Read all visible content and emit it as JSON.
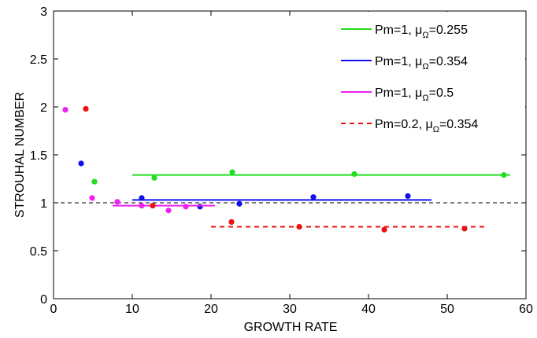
{
  "chart_data": {
    "type": "scatter",
    "xlabel": "GROWTH RATE",
    "ylabel": "STROUHAL NUMBER",
    "xlim": [
      0,
      60
    ],
    "ylim": [
      0,
      3
    ],
    "xticks": [
      "0",
      "10",
      "20",
      "30",
      "40",
      "50",
      "60"
    ],
    "yticks": [
      "0",
      "0.5",
      "1",
      "1.5",
      "2",
      "2.5",
      "3"
    ],
    "grid": false,
    "legend_position": "top-right",
    "reference_line": {
      "y": 1,
      "style": "dashed",
      "color": "#000000"
    },
    "series": [
      {
        "name": "Pm=1, μ",
        "name_subscript": "Ω",
        "name_suffix": "=0.255",
        "color": "#22dd22",
        "line_style": "solid",
        "fit_line": {
          "x": [
            10,
            58
          ],
          "y": 1.29
        },
        "points": [
          [
            5.2,
            1.22
          ],
          [
            12.8,
            1.26
          ],
          [
            22.7,
            1.32
          ],
          [
            38.2,
            1.3
          ],
          [
            57.2,
            1.29
          ]
        ]
      },
      {
        "name": "Pm=1, μ",
        "name_subscript": "Ω",
        "name_suffix": "=0.354",
        "color": "#1010ee",
        "line_style": "solid",
        "fit_line": {
          "x": [
            10,
            48
          ],
          "y": 1.03
        },
        "points": [
          [
            3.5,
            1.41
          ],
          [
            11.2,
            1.05
          ],
          [
            18.6,
            0.96
          ],
          [
            23.6,
            0.99
          ],
          [
            33.0,
            1.06
          ],
          [
            45.0,
            1.07
          ]
        ]
      },
      {
        "name": "Pm=1, μ",
        "name_subscript": "Ω",
        "name_suffix": "=0.5",
        "color": "#ee22ee",
        "line_style": "solid",
        "fit_line": {
          "x": [
            7.5,
            20.5
          ],
          "y": 0.97
        },
        "points": [
          [
            1.5,
            1.97
          ],
          [
            4.9,
            1.05
          ],
          [
            8.1,
            1.01
          ],
          [
            11.2,
            0.97
          ],
          [
            14.6,
            0.92
          ],
          [
            16.8,
            0.96
          ]
        ]
      },
      {
        "name": "Pm=0.2, μ",
        "name_subscript": "Ω",
        "name_suffix": "=0.354",
        "color": "#ee1111",
        "line_style": "dashed",
        "fit_line": {
          "x": [
            20,
            55
          ],
          "y": 0.75
        },
        "points": [
          [
            4.1,
            1.98
          ],
          [
            12.6,
            0.97
          ],
          [
            22.6,
            0.8
          ],
          [
            31.2,
            0.75
          ],
          [
            42.0,
            0.72
          ],
          [
            52.2,
            0.73
          ]
        ]
      }
    ]
  }
}
